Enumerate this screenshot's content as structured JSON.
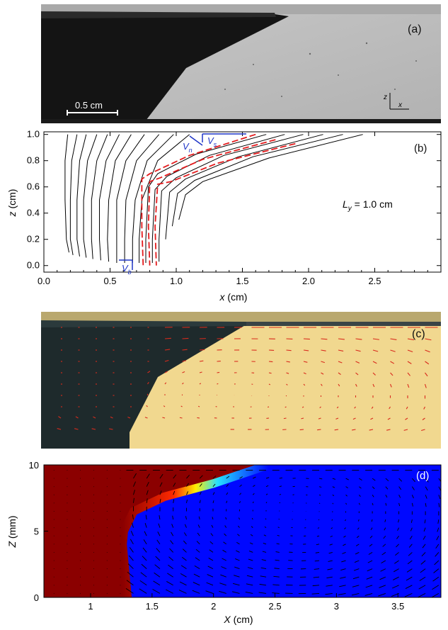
{
  "panel_a": {
    "label": "(a)",
    "scalebar_label": "0.5 cm",
    "axis_z": "z",
    "axis_x": "x"
  },
  "panel_b": {
    "label": "(b)",
    "annotation": "L",
    "annotation_sub": "y",
    "annotation_value": " = 1.0 cm",
    "vs_label": "V",
    "vs_sub": "s",
    "vn_label": "V",
    "vn_sub": "n",
    "vb_label": "V",
    "vb_sub": "b",
    "xlabel_var": "x",
    "xlabel_unit": " (cm)",
    "ylabel_var": "z",
    "ylabel_unit": " (cm)"
  },
  "panel_c": {
    "label": "(c)"
  },
  "panel_d": {
    "label": "(d)",
    "xlabel_var": "X",
    "xlabel_unit": " (cm)",
    "ylabel_var": "Z",
    "ylabel_unit": " (mm)"
  },
  "chart_data": [
    {
      "type": "line",
      "panel": "b",
      "xlim": [
        0,
        3.0
      ],
      "ylim": [
        -0.05,
        1.02
      ],
      "xticks": [
        "0.0",
        "0.5",
        "1.0",
        "1.5",
        "2.0",
        "2.5"
      ],
      "yticks": [
        "0.0",
        "0.2",
        "0.4",
        "0.6",
        "0.8",
        "1.0"
      ],
      "series": [
        {
          "x": [
            0.18,
            0.16,
            0.16,
            0.17,
            0.19
          ],
          "y": [
            1.0,
            0.8,
            0.5,
            0.2,
            0.1
          ]
        },
        {
          "x": [
            0.25,
            0.21,
            0.2,
            0.2,
            0.22
          ],
          "y": [
            1.0,
            0.8,
            0.5,
            0.2,
            0.08
          ]
        },
        {
          "x": [
            0.32,
            0.27,
            0.25,
            0.25,
            0.27
          ],
          "y": [
            1.0,
            0.8,
            0.5,
            0.2,
            0.07
          ]
        },
        {
          "x": [
            0.4,
            0.33,
            0.3,
            0.3,
            0.32
          ],
          "y": [
            1.0,
            0.8,
            0.5,
            0.2,
            0.06
          ]
        },
        {
          "x": [
            0.48,
            0.4,
            0.36,
            0.36,
            0.37
          ],
          "y": [
            1.0,
            0.8,
            0.5,
            0.2,
            0.05
          ]
        },
        {
          "x": [
            0.57,
            0.47,
            0.42,
            0.42,
            0.43
          ],
          "y": [
            1.0,
            0.8,
            0.5,
            0.2,
            0.04
          ]
        },
        {
          "x": [
            0.66,
            0.54,
            0.49,
            0.48,
            0.49
          ],
          "y": [
            1.0,
            0.8,
            0.5,
            0.2,
            0.03
          ]
        },
        {
          "x": [
            0.76,
            0.62,
            0.55,
            0.55,
            0.55
          ],
          "y": [
            1.0,
            0.8,
            0.5,
            0.2,
            0.02
          ]
        },
        {
          "x": [
            0.87,
            0.7,
            0.62,
            0.61,
            0.61
          ],
          "y": [
            1.0,
            0.8,
            0.5,
            0.2,
            0.02
          ]
        },
        {
          "x": [
            0.98,
            0.78,
            0.69,
            0.67,
            0.67
          ],
          "y": [
            1.0,
            0.8,
            0.5,
            0.2,
            0.02
          ]
        },
        {
          "x": [
            1.1,
            0.86,
            0.74,
            0.72,
            0.72
          ],
          "y": [
            1.0,
            0.8,
            0.5,
            0.2,
            0.02
          ]
        },
        {
          "x": [
            1.68,
            1.15,
            0.86,
            0.79,
            0.77,
            0.77
          ],
          "y": [
            1.0,
            0.85,
            0.7,
            0.6,
            0.2,
            0.02
          ]
        },
        {
          "x": [
            1.82,
            1.25,
            0.93,
            0.84,
            0.82,
            0.82
          ],
          "y": [
            1.0,
            0.84,
            0.68,
            0.58,
            0.2,
            0.02
          ]
        },
        {
          "x": [
            1.96,
            1.36,
            1.0,
            0.89,
            0.87,
            0.87
          ],
          "y": [
            1.0,
            0.84,
            0.67,
            0.57,
            0.2,
            0.03
          ]
        },
        {
          "x": [
            2.11,
            1.47,
            1.07,
            0.95,
            0.92
          ],
          "y": [
            1.0,
            0.83,
            0.66,
            0.56,
            0.2
          ]
        },
        {
          "x": [
            2.26,
            1.58,
            1.14,
            1.01,
            0.97
          ],
          "y": [
            1.0,
            0.83,
            0.65,
            0.55,
            0.3
          ]
        },
        {
          "x": [
            2.41,
            1.7,
            1.2,
            1.07,
            1.02
          ],
          "y": [
            1.0,
            0.82,
            0.64,
            0.54,
            0.35
          ]
        }
      ],
      "highlighted_series": [
        {
          "x": [
            1.6,
            1.1,
            0.8,
            0.74,
            0.74,
            0.75
          ],
          "y": [
            1.0,
            0.84,
            0.7,
            0.66,
            0.3,
            0.0
          ]
        },
        {
          "x": [
            1.75,
            1.2,
            0.88,
            0.8,
            0.79,
            0.8
          ],
          "y": [
            0.96,
            0.81,
            0.67,
            0.64,
            0.3,
            0.0
          ]
        },
        {
          "x": [
            1.9,
            1.31,
            0.96,
            0.86,
            0.84,
            0.85
          ],
          "y": [
            0.93,
            0.78,
            0.64,
            0.62,
            0.3,
            0.0
          ]
        }
      ],
      "colors": {
        "curves": "#000000",
        "highlight": "#e41a1c",
        "vectors": "#1f35c7"
      }
    },
    {
      "type": "heatmap",
      "panel": "d",
      "xlim": [
        0.62,
        3.85
      ],
      "ylim": [
        0,
        10
      ],
      "xticks": [
        "1",
        "1.5",
        "2",
        "2.5",
        "3",
        "3.5"
      ],
      "yticks": [
        "0",
        "5",
        "10"
      ],
      "interface": {
        "x": [
          1.3,
          1.28,
          1.26,
          1.27,
          1.35,
          1.6,
          2.0,
          2.45
        ],
        "y": [
          0,
          2,
          4,
          5,
          6.5,
          7.6,
          8.6,
          10
        ]
      },
      "colors": {
        "left": "#8b0000",
        "right": "#0008ff"
      }
    }
  ]
}
